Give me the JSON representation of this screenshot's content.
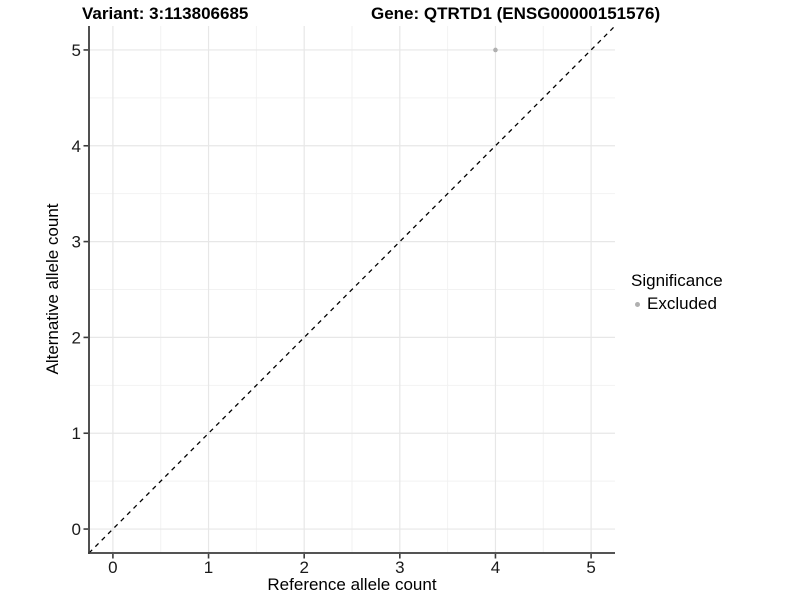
{
  "chart_data": {
    "type": "scatter",
    "titles": [
      "Variant: 3:113806685",
      "Gene: QTRTD1 (ENSG00000151576)"
    ],
    "xlabel": "Reference allele count",
    "ylabel": "Alternative allele count",
    "xlim": [
      -0.25,
      5.25
    ],
    "ylim": [
      -0.25,
      5.25
    ],
    "x_ticks": [
      0,
      1,
      2,
      3,
      4,
      5
    ],
    "y_ticks": [
      0,
      1,
      2,
      3,
      4,
      5
    ],
    "x_minor": [
      0.5,
      1.5,
      2.5,
      3.5,
      4.5
    ],
    "y_minor": [
      0.5,
      1.5,
      2.5,
      3.5,
      4.5
    ],
    "grid": true,
    "reference_line": {
      "kind": "identity",
      "style": "dashed",
      "color": "#000000"
    },
    "series": [
      {
        "name": "Excluded",
        "color": "#b0b0b0",
        "points": [
          {
            "x": 4,
            "y": 5
          }
        ]
      }
    ],
    "legend": {
      "title": "Significance",
      "position": "right",
      "items": [
        {
          "label": "Excluded",
          "color": "#b0b0b0"
        }
      ]
    },
    "style": {
      "panel_bg": "#ffffff",
      "grid_major_color": "#e7e7e7",
      "grid_minor_color": "#f2f2f2",
      "axis_line_color": "#3c3c3c",
      "tick_label_color": "#1a1a1a",
      "text_color": "#000000"
    }
  }
}
